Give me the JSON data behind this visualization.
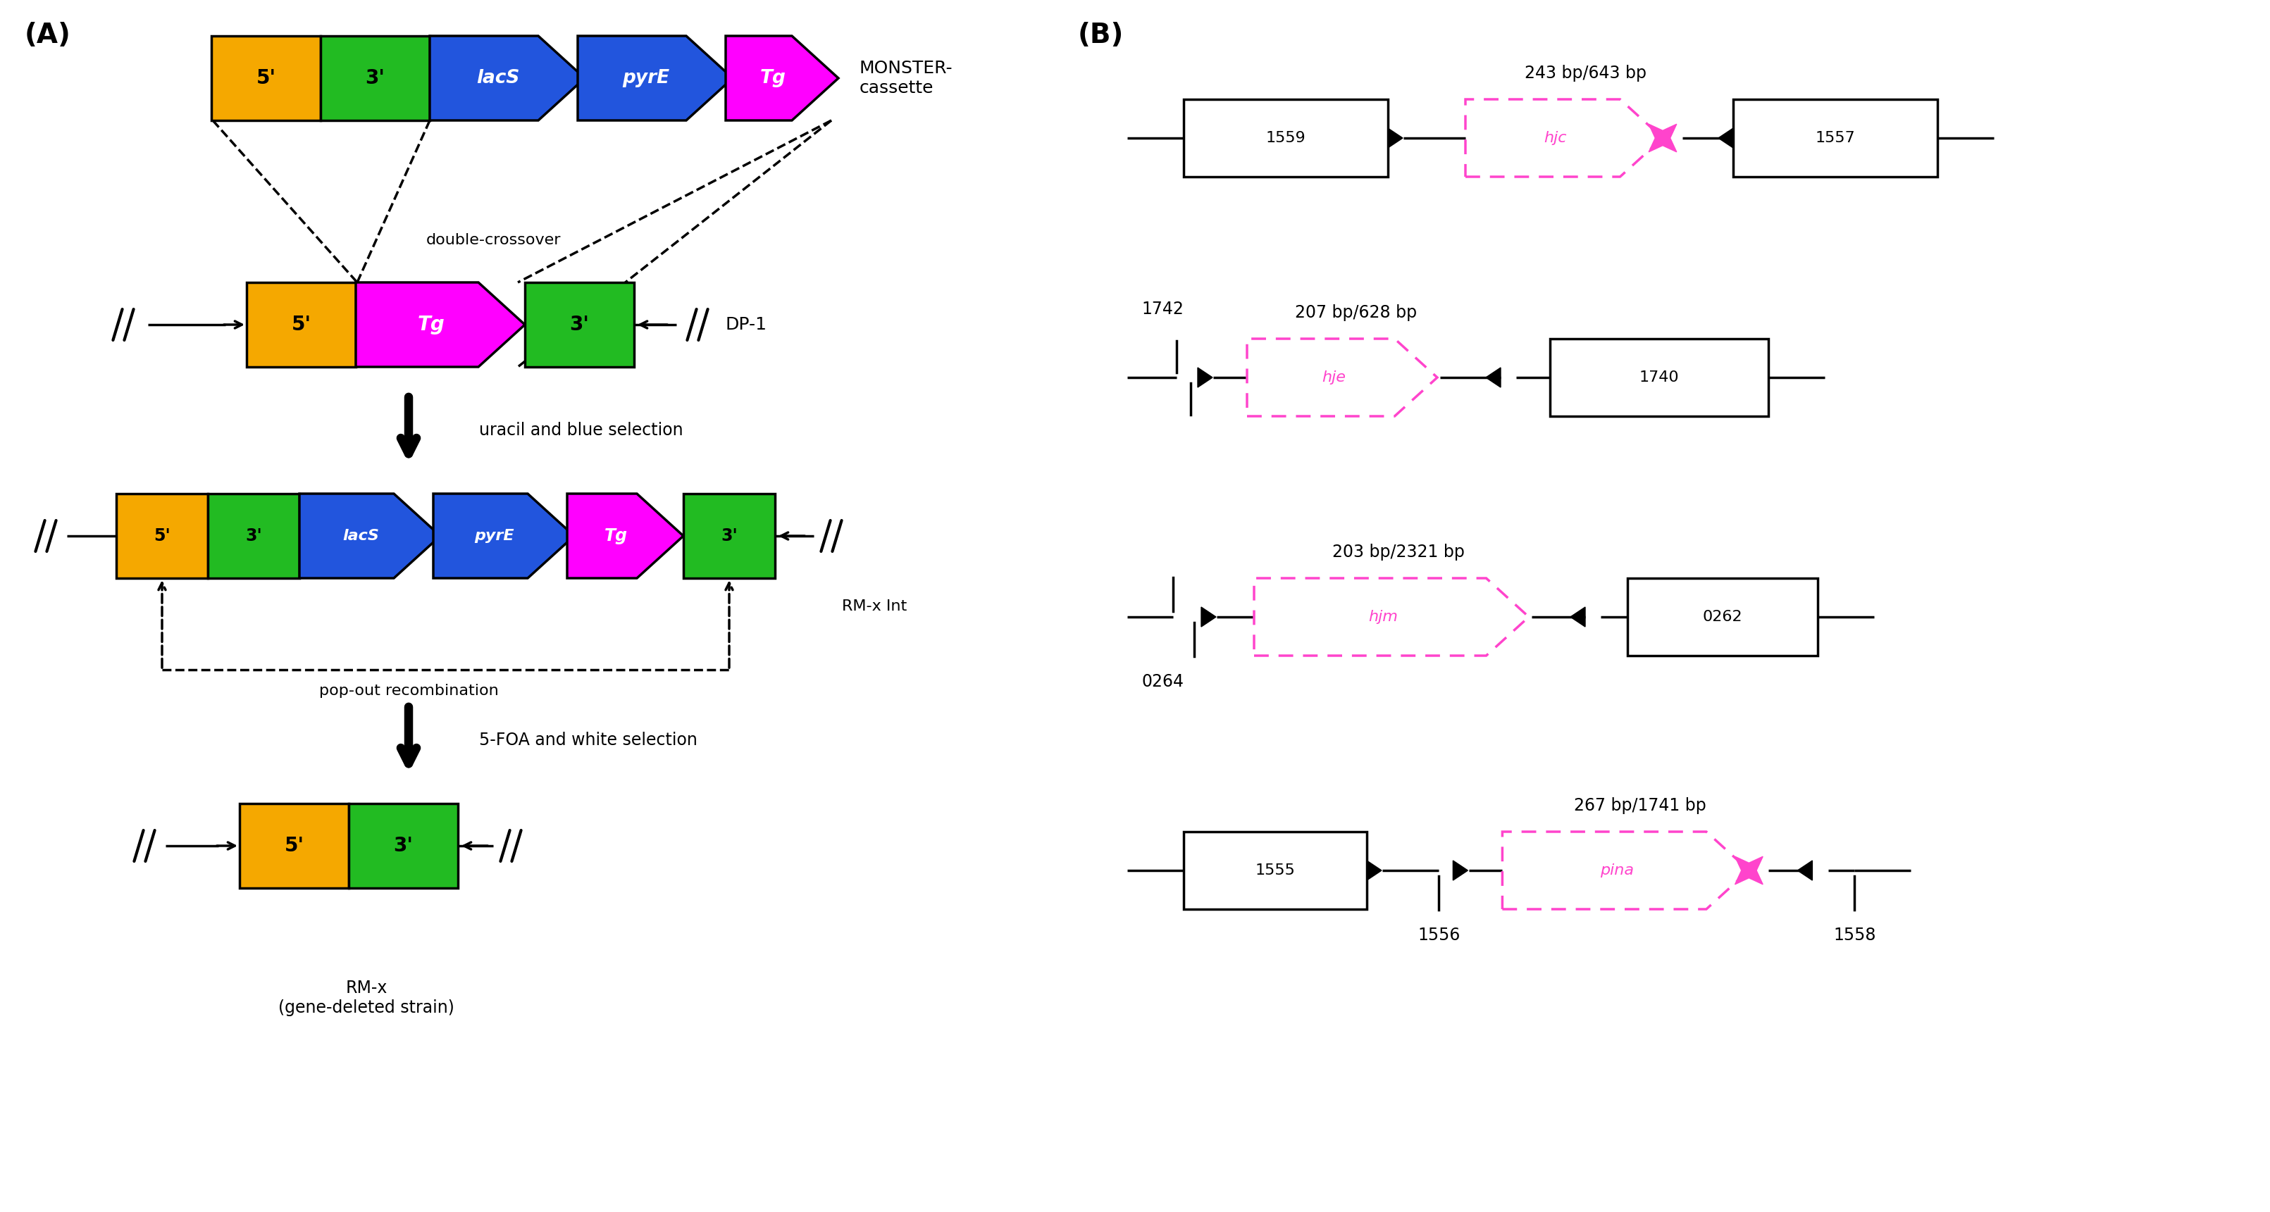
{
  "fig_width": 32.22,
  "fig_height": 17.21,
  "bg_color": "#ffffff",
  "colors": {
    "orange": "#F5A800",
    "green": "#22BB22",
    "blue": "#2255DD",
    "magenta": "#FF00FF",
    "black": "#000000",
    "white": "#ffffff"
  },
  "panel_A_label": "(A)",
  "panel_B_label": "(B)",
  "monster_cassette_text": "MONSTER-\ncassette",
  "double_crossover_text": "double-crossover",
  "dp1_text": "DP-1",
  "uracil_blue_text": "uracil and blue selection",
  "pop_out_text": "pop-out recombination",
  "rmx_int_text": "RM-x Int",
  "foa_white_text": "5-FOA and white selection",
  "rmx_text": "RM-x\n(gene-deleted strain)",
  "hjc_label": "243 bp/643 bp",
  "hje_label": "207 bp/628 bp",
  "hjm_label": "203 bp/2321 bp",
  "pina_label": "267 bp/1741 bp",
  "hjc_gene": "hjc",
  "hje_gene": "hje",
  "hjm_gene": "hjm",
  "pina_gene": "pina",
  "n1559": "1559",
  "n1557": "1557",
  "n1742": "1742",
  "n1740": "1740",
  "n0264": "0264",
  "n0262": "0262",
  "n1555": "1555",
  "n1556": "1556",
  "n1558": "1558",
  "lacS": "lacS",
  "pyrE": "pyrE",
  "Tg": "Tg"
}
